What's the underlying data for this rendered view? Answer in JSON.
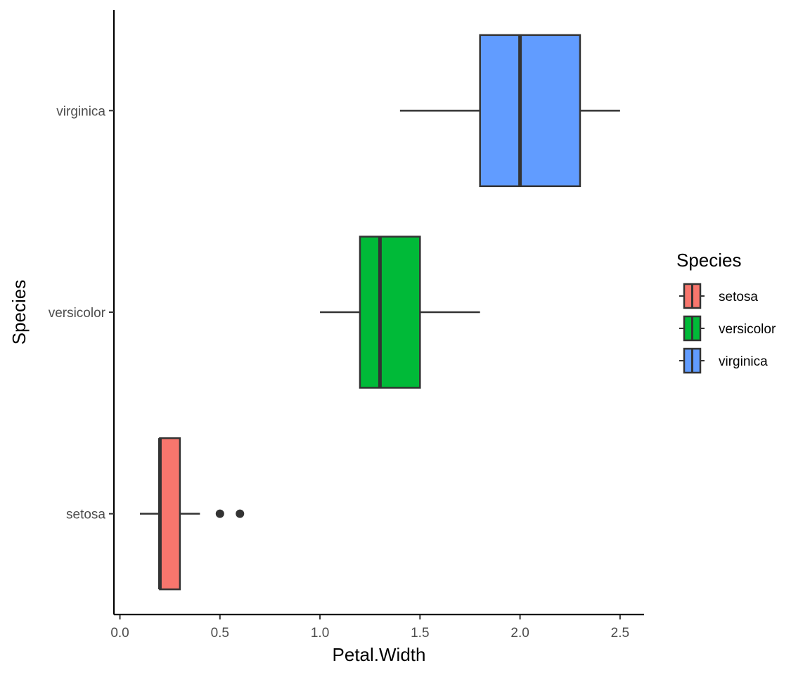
{
  "chart_data": {
    "type": "boxplot",
    "orientation": "horizontal",
    "xlabel": "Petal.Width",
    "ylabel": "Species",
    "xlim": [
      -0.03,
      2.62
    ],
    "x_ticks": [
      "0.0",
      "0.5",
      "1.0",
      "1.5",
      "2.0",
      "2.5"
    ],
    "categories": [
      "setosa",
      "versicolor",
      "virginica"
    ],
    "series": [
      {
        "name": "setosa",
        "color": "#F8766D",
        "q1": 0.2,
        "median": 0.2,
        "q3": 0.3,
        "whisker_low": 0.1,
        "whisker_high": 0.4,
        "outliers": [
          0.5,
          0.6
        ]
      },
      {
        "name": "versicolor",
        "color": "#00BA38",
        "q1": 1.2,
        "median": 1.3,
        "q3": 1.5,
        "whisker_low": 1.0,
        "whisker_high": 1.8,
        "outliers": []
      },
      {
        "name": "virginica",
        "color": "#619CFF",
        "q1": 1.8,
        "median": 2.0,
        "q3": 2.3,
        "whisker_low": 1.4,
        "whisker_high": 2.5,
        "outliers": []
      }
    ],
    "legend": {
      "title": "Species",
      "position": "right",
      "items": [
        "setosa",
        "versicolor",
        "virginica"
      ]
    },
    "grid": false
  }
}
